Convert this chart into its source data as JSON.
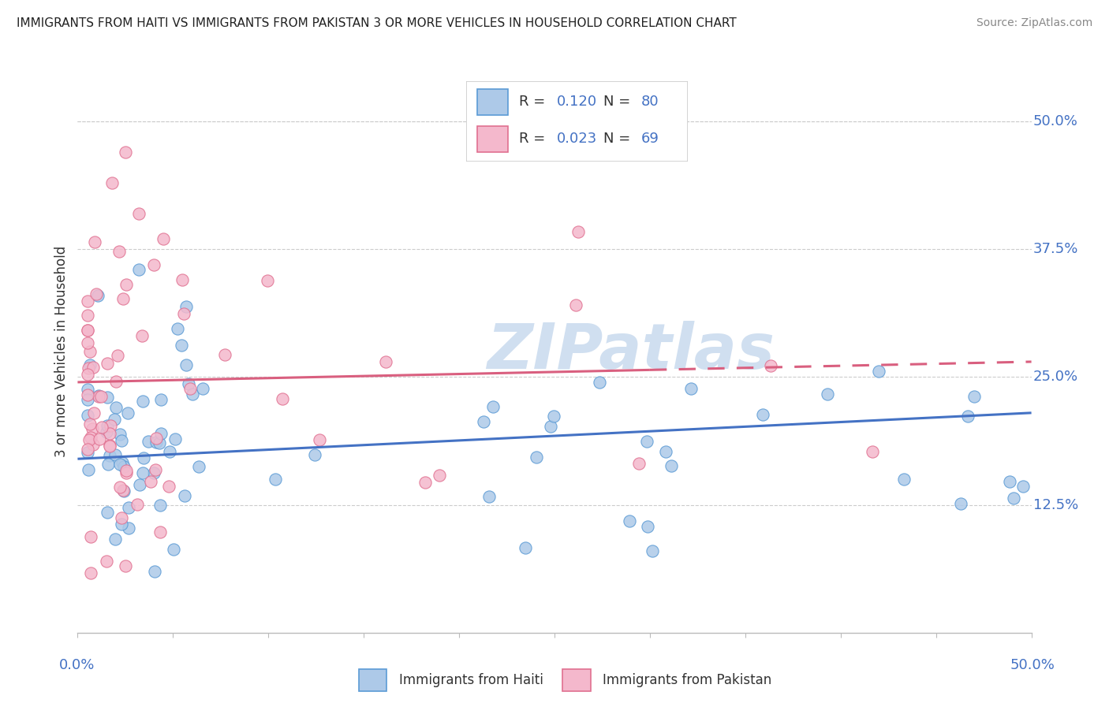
{
  "title": "IMMIGRANTS FROM HAITI VS IMMIGRANTS FROM PAKISTAN 3 OR MORE VEHICLES IN HOUSEHOLD CORRELATION CHART",
  "source": "Source: ZipAtlas.com",
  "ylabel": "3 or more Vehicles in Household",
  "ytick_labels": [
    "12.5%",
    "25.0%",
    "37.5%",
    "50.0%"
  ],
  "ytick_values": [
    0.125,
    0.25,
    0.375,
    0.5
  ],
  "xlim": [
    0.0,
    0.5
  ],
  "ylim": [
    0.0,
    0.55
  ],
  "legend_haiti": "Immigrants from Haiti",
  "legend_pakistan": "Immigrants from Pakistan",
  "R_haiti": 0.12,
  "N_haiti": 80,
  "R_pakistan": 0.023,
  "N_pakistan": 69,
  "haiti_fill": "#adc9e8",
  "haiti_edge": "#5b9bd5",
  "pakistan_fill": "#f4b8cc",
  "pakistan_edge": "#e07090",
  "haiti_line_color": "#4472c4",
  "pakistan_line_color": "#d95f7f",
  "watermark": "ZIPatlas",
  "watermark_color": "#d0dff0",
  "dot_size": 120,
  "background": "#ffffff",
  "grid_color": "#cccccc",
  "tick_label_color": "#4472c4",
  "title_color": "#222222",
  "source_color": "#888888"
}
